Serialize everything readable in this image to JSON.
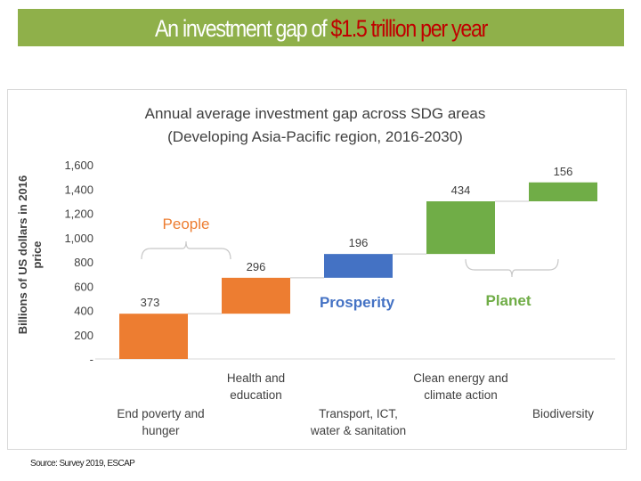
{
  "banner": {
    "title_prefix": "An investment gap of ",
    "title_highlight": "$1.5 trillion per year",
    "bg_color": "#8fb04a",
    "highlight_color": "#c00000"
  },
  "source": "Source: Survey 2019, ESCAP",
  "chart_data": {
    "type": "bar",
    "subtype": "waterfall",
    "title": "Annual average investment gap across SDG areas",
    "subtitle": "(Developing Asia-Pacific region, 2016-2030)",
    "ylabel_lines": [
      "Billions of US dollars in 2016",
      "price"
    ],
    "ylim": [
      0,
      1600
    ],
    "yticks": [
      0,
      200,
      400,
      600,
      800,
      1000,
      1200,
      1400,
      1600
    ],
    "ytick_labels": [
      "-",
      "200",
      "400",
      "600",
      "800",
      "1,000",
      "1,200",
      "1,400",
      "1,600"
    ],
    "categories": [
      [
        "End poverty and",
        "hunger"
      ],
      [
        "Health and",
        "education"
      ],
      [
        "Transport, ICT,",
        "water & sanitation"
      ],
      [
        "Clean energy and",
        "climate action"
      ],
      [
        "Biodiversity"
      ]
    ],
    "label_row": [
      "bottom",
      "top",
      "bottom",
      "top",
      "bottom"
    ],
    "values": [
      373,
      296,
      196,
      434,
      156
    ],
    "value_labels": [
      "373",
      "296",
      "196",
      "434",
      "156"
    ],
    "colors": [
      "#ed7d31",
      "#ed7d31",
      "#4472c4",
      "#70ad47",
      "#70ad47"
    ],
    "groups": [
      {
        "name": "People",
        "color": "#ed7d31"
      },
      {
        "name": "Prosperity",
        "color": "#4472c4"
      },
      {
        "name": "Planet",
        "color": "#70ad47"
      }
    ],
    "grid": false
  }
}
